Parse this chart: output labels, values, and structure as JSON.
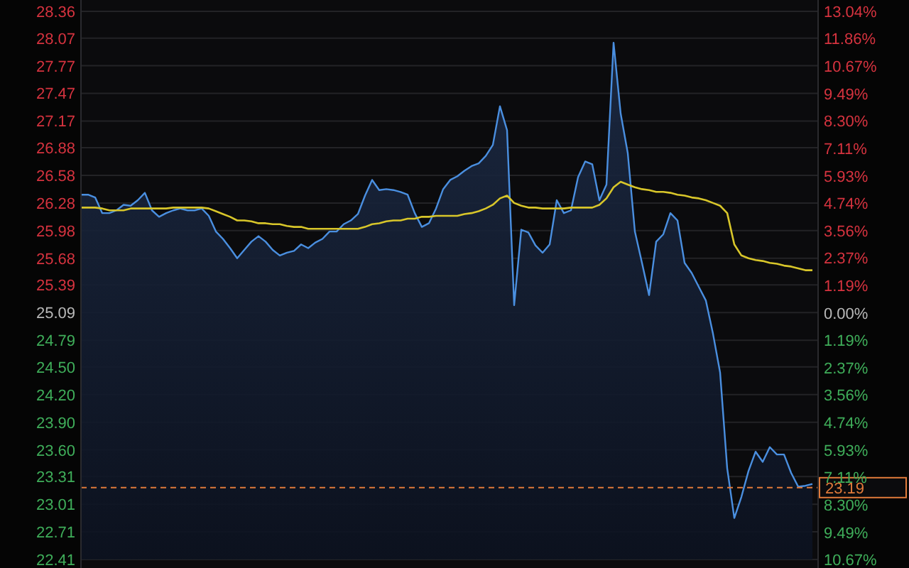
{
  "chart_data": {
    "type": "area",
    "categories": [
      null,
      null,
      null,
      null,
      null,
      null,
      null,
      null,
      null,
      null,
      null,
      null,
      null,
      null,
      null,
      null,
      null,
      null,
      null,
      null,
      null,
      null,
      null,
      null,
      null,
      null,
      null,
      null,
      null,
      null,
      null,
      null,
      null,
      null,
      null,
      null,
      null,
      null,
      null,
      null,
      null,
      null,
      null,
      null,
      null,
      null,
      null,
      null,
      null,
      null,
      null,
      null,
      null,
      null,
      null,
      null,
      null,
      null,
      null,
      null,
      null,
      null,
      null,
      null,
      null,
      null,
      null,
      null,
      null,
      null,
      null,
      null,
      null,
      null,
      null,
      null,
      null,
      null,
      null,
      null,
      null,
      null,
      null,
      null,
      null,
      null,
      null,
      null,
      null,
      null,
      null,
      null,
      null,
      null,
      null,
      null,
      null,
      null,
      null,
      null,
      null,
      null,
      null,
      null
    ],
    "series": [
      {
        "color": "#4a8fe0",
        "values": [
          26.37,
          26.37,
          26.34,
          26.17,
          26.17,
          26.2,
          26.26,
          26.25,
          26.31,
          26.39,
          26.2,
          26.13,
          26.17,
          26.2,
          26.22,
          26.2,
          26.2,
          26.22,
          26.14,
          25.97,
          25.89,
          25.79,
          25.68,
          25.77,
          25.86,
          25.92,
          25.86,
          25.77,
          25.71,
          25.74,
          25.76,
          25.83,
          25.79,
          25.85,
          25.89,
          25.97,
          25.97,
          26.05,
          26.09,
          26.16,
          26.36,
          26.53,
          26.42,
          26.43,
          26.42,
          26.4,
          26.37,
          26.17,
          26.02,
          26.06,
          26.22,
          26.43,
          26.53,
          26.57,
          26.63,
          26.68,
          26.71,
          26.79,
          26.91,
          27.33,
          27.07,
          25.17,
          25.99,
          25.96,
          25.82,
          25.74,
          25.83,
          26.31,
          26.17,
          26.2,
          26.56,
          26.73,
          26.7,
          26.31,
          26.48,
          28.02,
          27.25,
          26.82,
          25.97,
          25.63,
          25.28,
          25.86,
          25.94,
          26.17,
          26.09,
          25.63,
          25.52,
          25.37,
          25.22,
          24.86,
          24.44,
          23.4,
          22.86,
          23.09,
          23.37,
          23.58,
          23.47,
          23.63,
          23.55,
          23.55,
          23.35,
          23.2,
          23.21,
          23.23
        ]
      },
      {
        "type": "line",
        "color": "#d8c62a",
        "values": [
          26.23,
          26.23,
          26.23,
          26.22,
          26.2,
          26.2,
          26.2,
          26.22,
          26.22,
          26.22,
          26.22,
          26.22,
          26.22,
          26.23,
          26.23,
          26.23,
          26.23,
          26.23,
          26.22,
          26.19,
          26.16,
          26.13,
          26.09,
          26.09,
          26.08,
          26.06,
          26.06,
          26.05,
          26.05,
          26.03,
          26.02,
          26.02,
          26.0,
          26.0,
          26.0,
          26.0,
          26.0,
          26.0,
          26.0,
          26.0,
          26.02,
          26.05,
          26.06,
          26.08,
          26.09,
          26.09,
          26.11,
          26.11,
          26.13,
          26.13,
          26.14,
          26.14,
          26.14,
          26.14,
          26.16,
          26.17,
          26.19,
          26.22,
          26.26,
          26.33,
          26.36,
          26.28,
          26.25,
          26.23,
          26.23,
          26.22,
          26.22,
          26.22,
          26.22,
          26.23,
          26.23,
          26.23,
          26.23,
          26.26,
          26.33,
          26.45,
          26.51,
          26.48,
          26.45,
          26.43,
          26.42,
          26.4,
          26.4,
          26.39,
          26.37,
          26.36,
          26.34,
          26.33,
          26.31,
          26.28,
          26.25,
          26.17,
          25.83,
          25.71,
          25.68,
          25.66,
          25.65,
          25.63,
          25.62,
          25.6,
          25.59,
          25.57,
          25.55,
          25.55
        ]
      }
    ],
    "ylim": [
      22.41,
      28.36
    ],
    "yticks": [
      28.36,
      28.07,
      27.77,
      27.47,
      27.17,
      26.88,
      26.58,
      26.28,
      25.98,
      25.68,
      25.39,
      25.09,
      24.79,
      {
        "value": 24.5,
        "label": "24.50"
      },
      {
        "value": 24.2,
        "label": "24.20"
      },
      {
        "value": 23.9,
        "label": "23.90"
      },
      {
        "value": 23.6,
        "label": "23.60"
      },
      23.31,
      23.01,
      22.71,
      22.41
    ],
    "y2lim": [
      -10.67,
      13.04
    ],
    "y2ticks": [
      {
        "value": 13.04,
        "label": "13.04%"
      },
      {
        "value": 11.86,
        "label": "11.86%"
      },
      {
        "value": 10.67,
        "label": "10.67%"
      },
      {
        "value": 9.49,
        "label": "9.49%"
      },
      {
        "value": 8.3,
        "label": "8.30%"
      },
      {
        "value": 7.11,
        "label": "7.11%"
      },
      {
        "value": 5.93,
        "label": "5.93%"
      },
      {
        "value": 4.74,
        "label": "4.74%"
      },
      {
        "value": 3.56,
        "label": "3.56%"
      },
      {
        "value": 2.37,
        "label": "2.37%"
      },
      {
        "value": 1.19,
        "label": "1.19%"
      },
      {
        "value": 0,
        "label": "0.00%"
      },
      {
        "value": -1.19,
        "label": "1.19%"
      },
      {
        "value": -2.37,
        "label": "2.37%"
      },
      {
        "value": -3.56,
        "label": "3.56%"
      },
      {
        "value": -4.74,
        "label": "4.74%"
      },
      {
        "value": -5.93,
        "label": "5.93%"
      },
      {
        "value": -7.11,
        "label": "7.11%"
      },
      {
        "value": -8.3,
        "label": "8.30%"
      },
      {
        "value": -9.49,
        "label": "9.49%"
      },
      {
        "value": -10.67,
        "label": "10.67%"
      }
    ],
    "ref_lines": [
      {
        "axis": "y",
        "value": 23.19,
        "label": "23.19",
        "color": "#e07a3a",
        "line_style": "dashed"
      }
    ],
    "grid": "y"
  }
}
